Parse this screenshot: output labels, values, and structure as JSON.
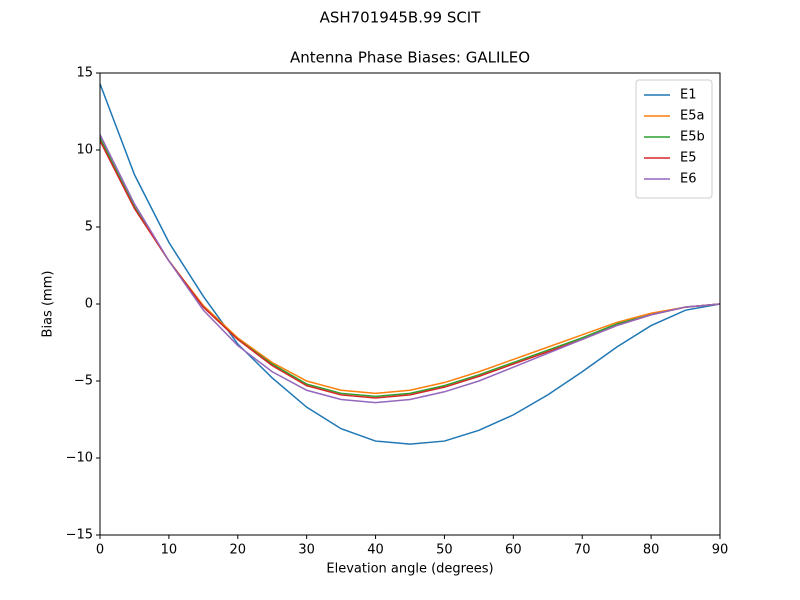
{
  "chart_data": {
    "type": "line",
    "suptitle": "ASH701945B.99   SCIT",
    "title": "Antenna Phase Biases: GALILEO",
    "x_label": "Elevation angle (degrees)",
    "y_label": "Bias (mm)",
    "x": [
      0,
      5,
      10,
      15,
      20,
      25,
      30,
      35,
      40,
      45,
      50,
      55,
      60,
      65,
      70,
      75,
      80,
      85,
      90
    ],
    "series": [
      {
        "name": "E1",
        "color": "#1f77b4",
        "values": [
          14.3,
          8.4,
          4.0,
          0.5,
          -2.6,
          -4.8,
          -6.7,
          -8.1,
          -8.9,
          -9.1,
          -8.9,
          -8.2,
          -7.2,
          -5.9,
          -4.4,
          -2.8,
          -1.4,
          -0.4,
          0.0
        ]
      },
      {
        "name": "E5a",
        "color": "#ff7f0e",
        "values": [
          10.7,
          6.3,
          2.8,
          -0.1,
          -2.2,
          -3.8,
          -5.0,
          -5.6,
          -5.8,
          -5.6,
          -5.1,
          -4.4,
          -3.6,
          -2.8,
          -2.0,
          -1.2,
          -0.6,
          -0.2,
          0.0
        ]
      },
      {
        "name": "E5b",
        "color": "#2ca02c",
        "values": [
          10.8,
          6.3,
          2.8,
          -0.2,
          -2.3,
          -3.9,
          -5.2,
          -5.8,
          -6.0,
          -5.8,
          -5.3,
          -4.6,
          -3.8,
          -3.0,
          -2.2,
          -1.3,
          -0.7,
          -0.2,
          0.0
        ]
      },
      {
        "name": "E5",
        "color": "#d62728",
        "values": [
          10.6,
          6.2,
          2.8,
          -0.2,
          -2.3,
          -4.0,
          -5.3,
          -5.9,
          -6.1,
          -5.9,
          -5.4,
          -4.7,
          -3.9,
          -3.1,
          -2.3,
          -1.4,
          -0.7,
          -0.2,
          0.0
        ]
      },
      {
        "name": "E6",
        "color": "#9467bd",
        "values": [
          11.0,
          6.5,
          2.8,
          -0.4,
          -2.7,
          -4.4,
          -5.6,
          -6.2,
          -6.4,
          -6.2,
          -5.7,
          -5.0,
          -4.1,
          -3.2,
          -2.3,
          -1.4,
          -0.7,
          -0.2,
          0.0
        ]
      }
    ],
    "xlim": [
      0,
      90
    ],
    "xticks": [
      0,
      10,
      20,
      30,
      40,
      50,
      60,
      70,
      80,
      90
    ],
    "ylim": [
      -15,
      15
    ],
    "yticks": [
      {
        "value": -15,
        "label": "−15"
      },
      {
        "value": -10,
        "label": "−10"
      },
      {
        "value": -5,
        "label": "−5"
      },
      0,
      5,
      10,
      15
    ],
    "grid": false,
    "legend": "upper-right"
  }
}
